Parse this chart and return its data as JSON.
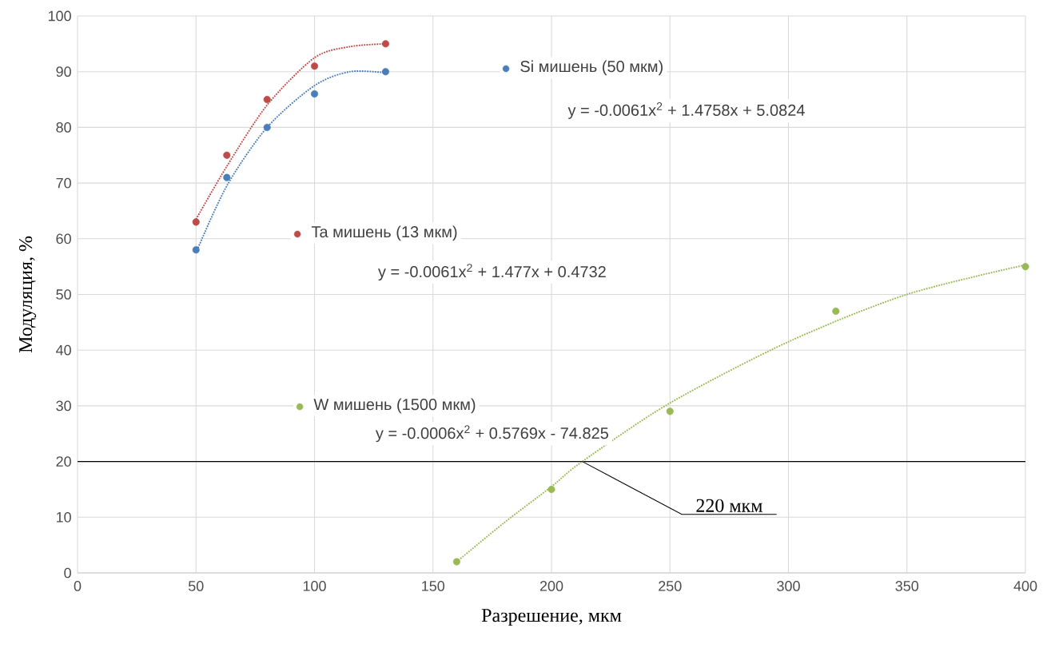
{
  "chart_data": {
    "type": "scatter",
    "xlabel": "Разрешение, мкм",
    "ylabel": "Модуляция, %",
    "xlim": [
      0,
      400
    ],
    "ylim": [
      0,
      100
    ],
    "xticks": [
      0,
      50,
      100,
      150,
      200,
      250,
      300,
      350,
      400
    ],
    "yticks": [
      0,
      10,
      20,
      30,
      40,
      50,
      60,
      70,
      80,
      90,
      100
    ],
    "grid": true,
    "marker": "circle",
    "legend": "top",
    "series": [
      {
        "name": "Si мишень (50 мкм)",
        "color": "#4a7ebb",
        "x": [
          50,
          63,
          80,
          100,
          130
        ],
        "values": [
          58,
          71,
          80,
          86,
          90
        ]
      },
      {
        "name": "Ta мишень (13 мкм)",
        "color": "#be4b48",
        "x": [
          50,
          63,
          80,
          100,
          130
        ],
        "values": [
          63,
          75,
          85,
          91,
          95
        ]
      },
      {
        "name": "W мишень (1500 мкм)",
        "color": "#98b954",
        "x": [
          160,
          200,
          250,
          320,
          400
        ],
        "values": [
          2,
          15,
          29,
          47,
          55
        ]
      },
      {
        "type": "line",
        "line_style": "dotted",
        "marker": "none",
        "color": "#4a7ebb",
        "x": [
          50,
          63,
          80,
          100,
          115,
          130
        ],
        "values": [
          57.5,
          69.5,
          80,
          87.5,
          90,
          89.8
        ]
      },
      {
        "type": "line",
        "line_style": "dotted",
        "marker": "none",
        "color": "#be4b48",
        "x": [
          50,
          63,
          80,
          100,
          115,
          130
        ],
        "values": [
          63.5,
          73,
          84,
          92.5,
          94.5,
          95
        ]
      },
      {
        "type": "line",
        "line_style": "dotted",
        "marker": "none",
        "color": "#98b954",
        "x": [
          160,
          180,
          200,
          213,
          250,
          300,
          350,
          400
        ],
        "values": [
          2,
          9,
          15.5,
          20,
          30.5,
          41.5,
          50,
          55.3
        ]
      }
    ],
    "ref_lines": [
      {
        "axis": "y",
        "value": 20,
        "color": "#000000"
      }
    ],
    "annotations": [
      "y = -0.0061x$^{2}$ + 1.4758x + 5.0824",
      "y = -0.0061x$^{2}$ + 1.477x + 0.4732",
      "y = -0.0006x$^{2}$ + 0.5769x - 74.825",
      {
        "text": "220 мкм",
        "x": 213,
        "y": 20
      }
    ]
  }
}
